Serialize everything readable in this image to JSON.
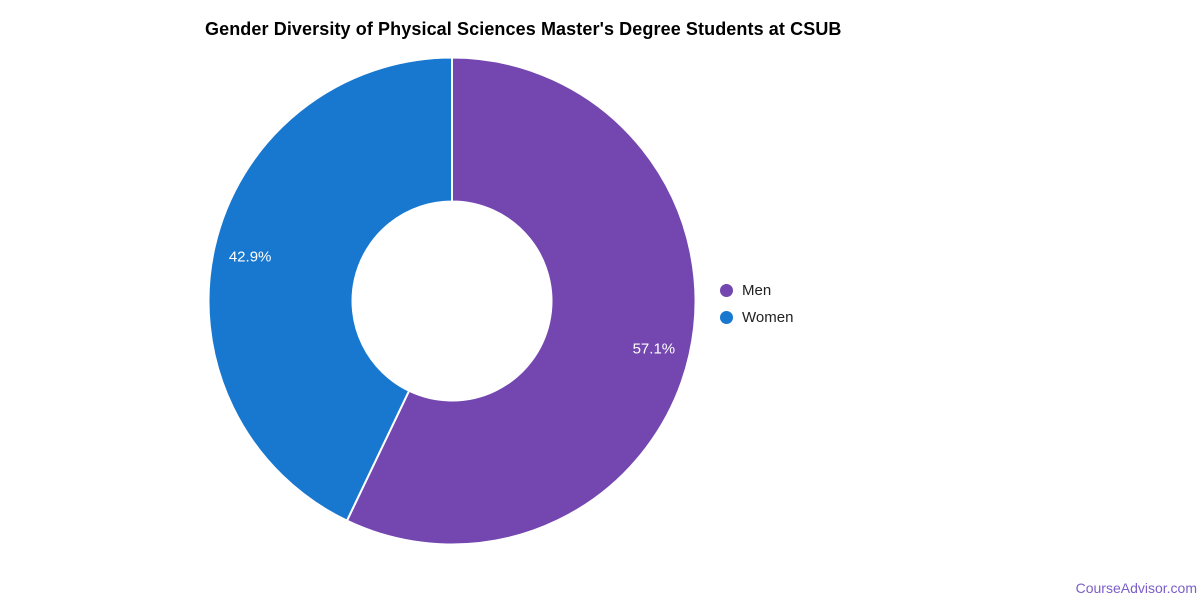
{
  "chart_data": {
    "type": "pie",
    "subtype": "donut",
    "title": "Gender Diversity of Physical Sciences Master's Degree Students at CSUB",
    "categories": [
      "Men",
      "Women"
    ],
    "values": [
      57.1,
      42.9
    ],
    "value_labels": [
      "57.1%",
      "42.9%"
    ],
    "colors": [
      "#7347af",
      "#1877cf"
    ],
    "legend_position": "right",
    "start_angle_deg": 0,
    "direction": "clockwise",
    "hole_ratio": 0.41,
    "slice_label_color": "#ffffff",
    "slice_border_color": "#ffffff",
    "slices": [
      {
        "label": "Men",
        "value": 57.1,
        "display": "57.1%",
        "color": "#7347af"
      },
      {
        "label": "Women",
        "value": 42.9,
        "display": "42.9%",
        "color": "#1877cf"
      }
    ]
  },
  "watermark": {
    "text": "CourseAdvisor.com",
    "color": "#7b5ec7"
  },
  "text_colors": {
    "title": "#000000",
    "legend": "#222222"
  },
  "page": {
    "background": "#ffffff"
  }
}
